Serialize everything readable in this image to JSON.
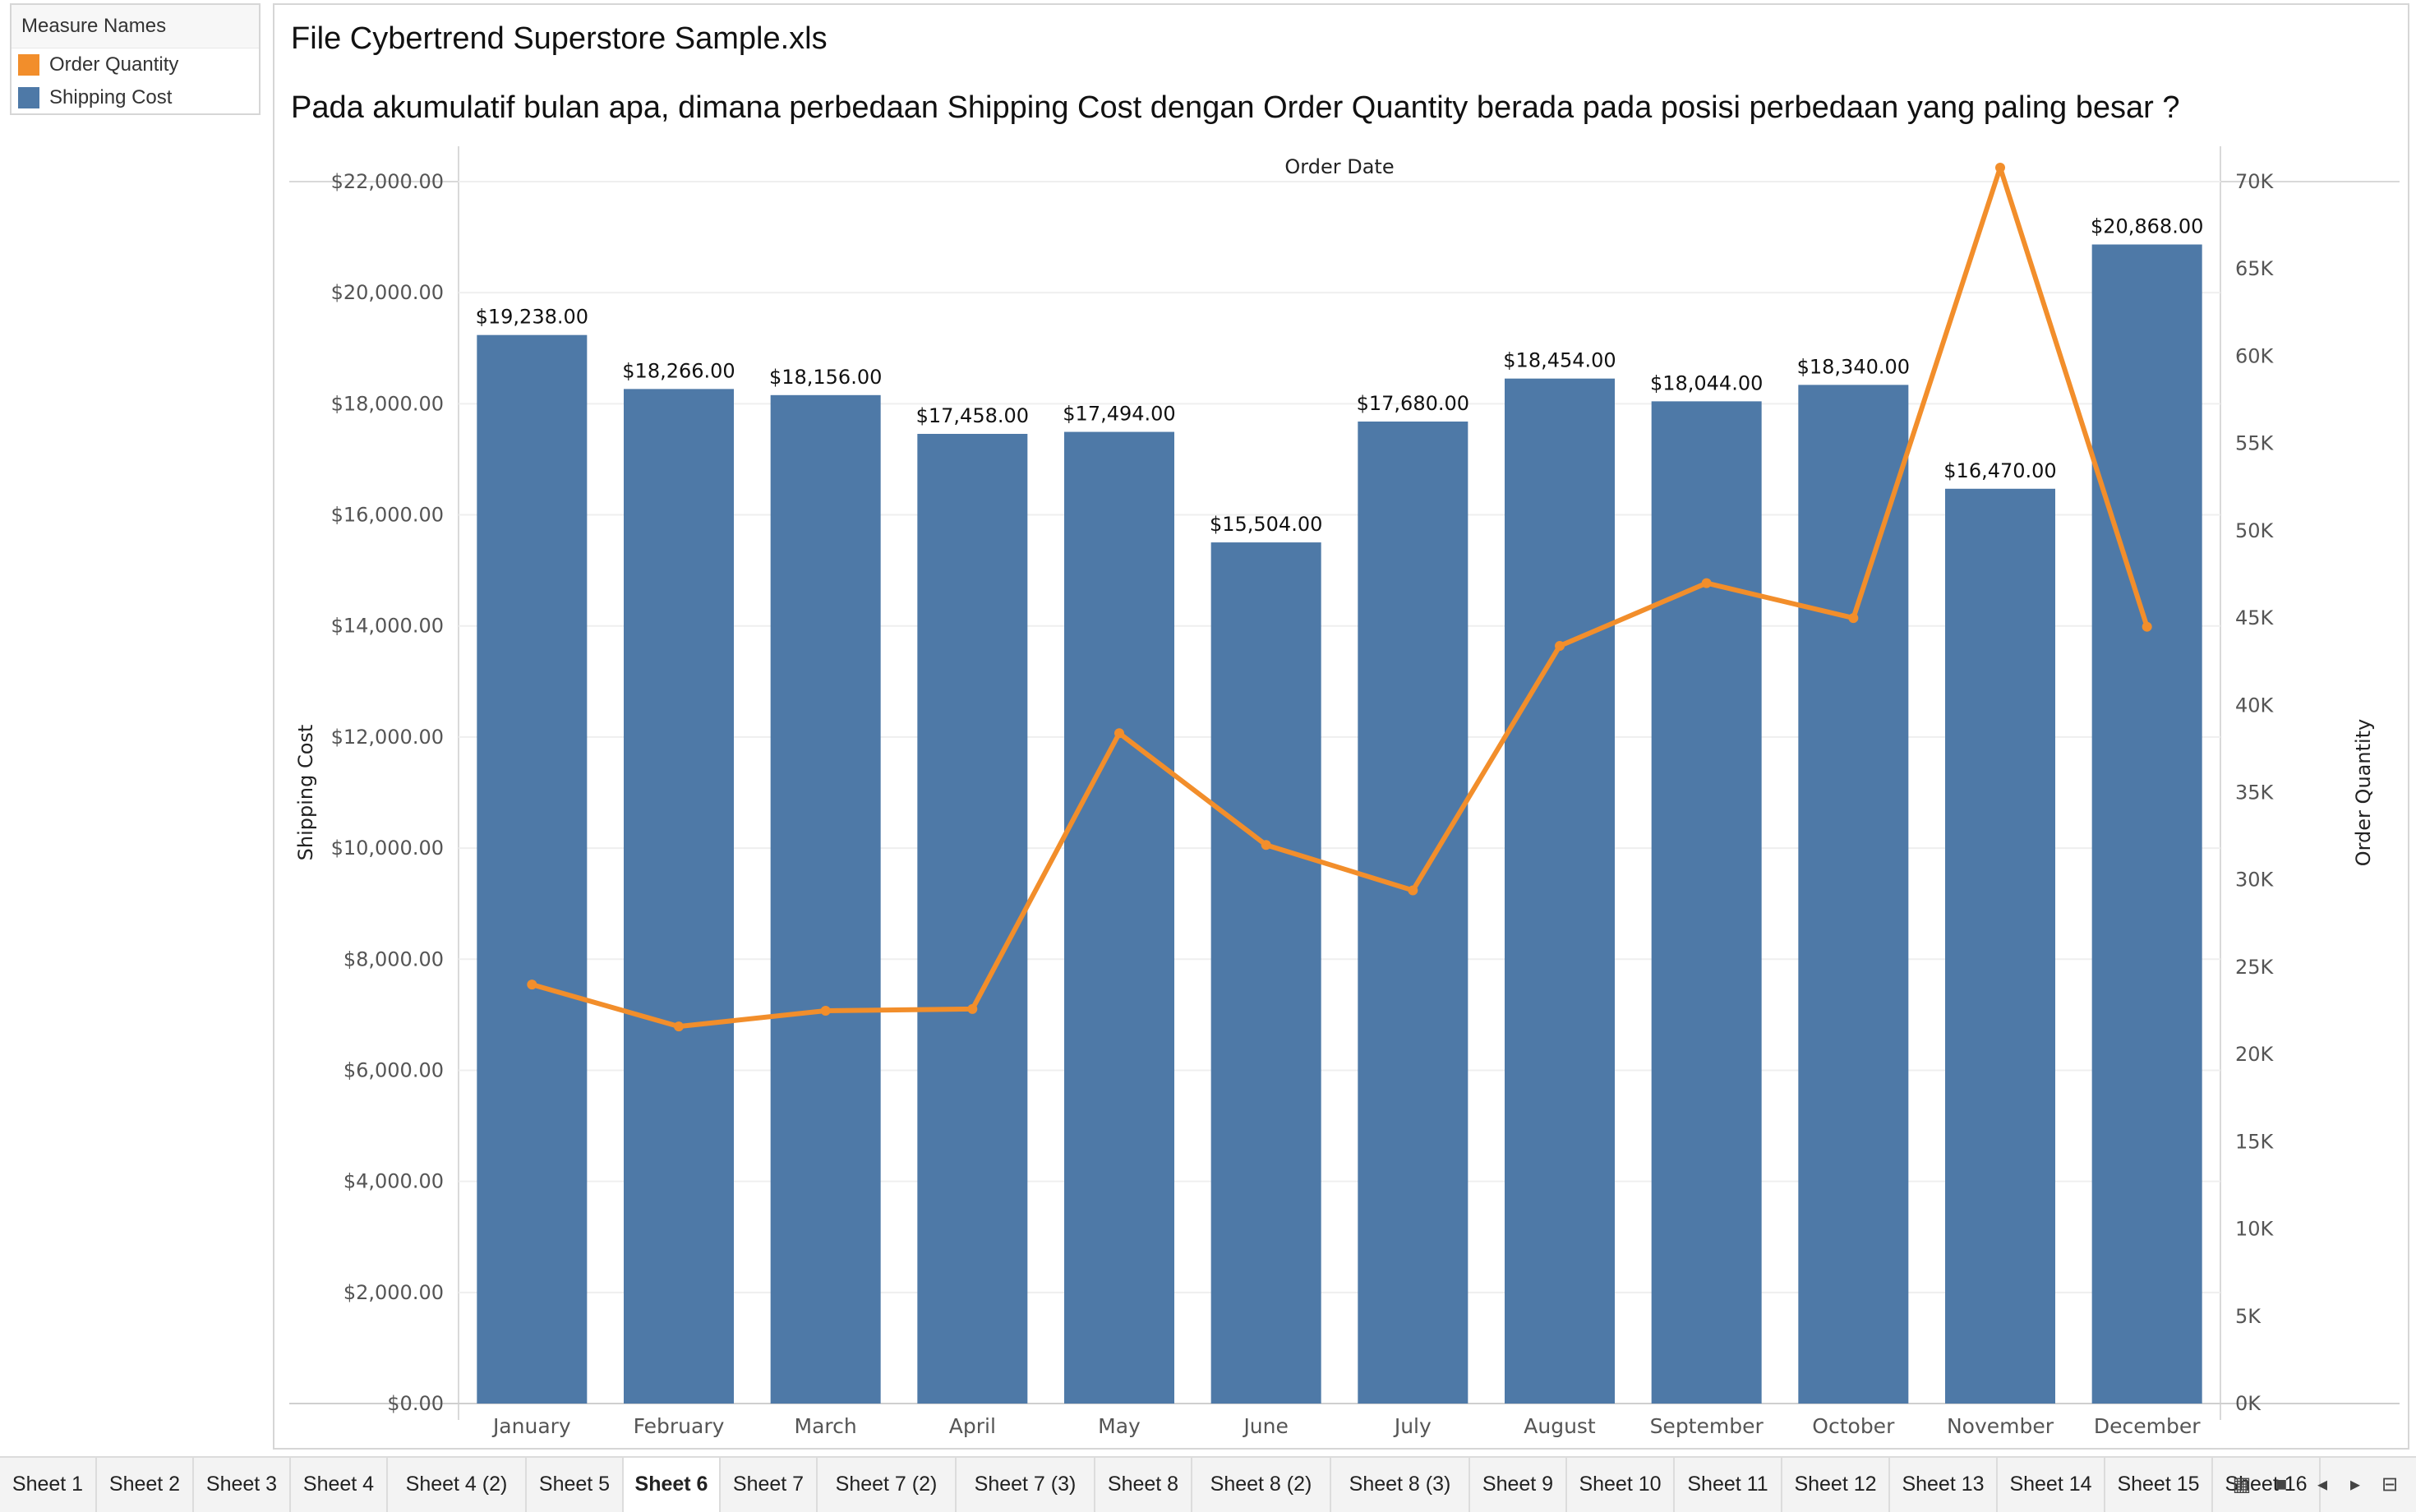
{
  "legend": {
    "title": "Measure Names",
    "items": [
      {
        "label": "Order Quantity",
        "color": "#f28e2b"
      },
      {
        "label": "Shipping Cost",
        "color": "#4e79a7"
      }
    ]
  },
  "header": {
    "title": "File Cybertrend Superstore Sample.xls",
    "question": "Pada akumulatif bulan apa, dimana perbedaan Shipping Cost dengan Order Quantity berada pada posisi perbedaan yang paling besar ?"
  },
  "chart_data": {
    "type": "bar",
    "title": "",
    "header_label": "Order Date",
    "categories": [
      "January",
      "February",
      "March",
      "April",
      "May",
      "June",
      "July",
      "August",
      "September",
      "October",
      "November",
      "December"
    ],
    "ylabel": "Shipping Cost",
    "y2label": "Order Quantity",
    "ylim": [
      0,
      22000
    ],
    "y2lim": [
      0,
      70000
    ],
    "yticks": [
      "$0.00",
      "$2,000.00",
      "$4,000.00",
      "$6,000.00",
      "$8,000.00",
      "$10,000.00",
      "$12,000.00",
      "$14,000.00",
      "$16,000.00",
      "$18,000.00",
      "$20,000.00",
      "$22,000.00"
    ],
    "y2ticks": [
      "0K",
      "5K",
      "10K",
      "15K",
      "20K",
      "25K",
      "30K",
      "35K",
      "40K",
      "45K",
      "50K",
      "55K",
      "60K",
      "65K",
      "70K"
    ],
    "series": [
      {
        "name": "Shipping Cost",
        "type": "bar",
        "axis": "left",
        "color": "#4e79a7",
        "values": [
          19238,
          18266,
          18156,
          17458,
          17494,
          15504,
          17680,
          18454,
          18044,
          18340,
          16470,
          20868
        ],
        "labels": [
          "$19,238.00",
          "$18,266.00",
          "$18,156.00",
          "$17,458.00",
          "$17,494.00",
          "$15,504.00",
          "$17,680.00",
          "$18,454.00",
          "$18,044.00",
          "$18,340.00",
          "$16,470.00",
          "$20,868.00"
        ]
      },
      {
        "name": "Order Quantity",
        "type": "line",
        "axis": "right",
        "color": "#f28e2b",
        "values": [
          24000,
          21600,
          22500,
          22600,
          38400,
          32000,
          29400,
          43400,
          47000,
          45000,
          70800,
          44500
        ]
      }
    ],
    "grid": true,
    "legend_position": "top-left"
  },
  "tabs": [
    "Sheet 1",
    "Sheet 2",
    "Sheet 3",
    "Sheet 4",
    "Sheet 4 (2)",
    "Sheet 5",
    "Sheet 6",
    "Sheet 7",
    "Sheet 7 (2)",
    "Sheet 7 (3)",
    "Sheet 8",
    "Sheet 8 (2)",
    "Sheet 8 (3)",
    "Sheet 9",
    "Sheet 10",
    "Sheet 11",
    "Sheet 12",
    "Sheet 13",
    "Sheet 14",
    "Sheet 15",
    "Sheet 16"
  ],
  "active_tab": "Sheet 6",
  "nav_icons": [
    "grid-view-icon",
    "filmstrip-view-icon",
    "previous-sheet-icon",
    "next-sheet-icon",
    "present-icon"
  ]
}
